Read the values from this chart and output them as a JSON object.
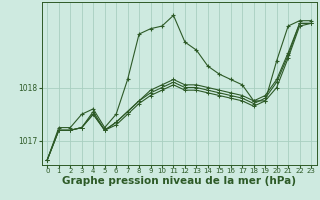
{
  "background_color": "#ceeae0",
  "grid_color": "#a8cfc0",
  "line_color": "#2d5a27",
  "xlabel": "Graphe pression niveau de la mer (hPa)",
  "xlabel_fontsize": 7.5,
  "yticks": [
    1017,
    1018
  ],
  "ylim": [
    1016.55,
    1019.6
  ],
  "xlim": [
    -0.5,
    23.5
  ],
  "xticks": [
    0,
    1,
    2,
    3,
    4,
    5,
    6,
    7,
    8,
    9,
    10,
    11,
    12,
    13,
    14,
    15,
    16,
    17,
    18,
    19,
    20,
    21,
    22,
    23
  ],
  "series": [
    [
      1016.65,
      1017.25,
      1017.25,
      1017.5,
      1017.6,
      1017.25,
      1017.5,
      1018.15,
      1019.0,
      1019.1,
      1019.15,
      1019.35,
      1018.85,
      1018.7,
      1018.4,
      1018.25,
      1018.15,
      1018.05,
      1017.75,
      1017.75,
      1018.5,
      1019.15,
      1019.25,
      1019.25
    ],
    [
      1016.65,
      1017.2,
      1017.2,
      1017.25,
      1017.55,
      1017.2,
      1017.35,
      1017.55,
      1017.75,
      1017.95,
      1018.05,
      1018.15,
      1018.05,
      1018.05,
      1018.0,
      1017.95,
      1017.9,
      1017.85,
      1017.75,
      1017.85,
      1018.15,
      1018.65,
      1019.2,
      1019.2
    ],
    [
      1016.65,
      1017.2,
      1017.2,
      1017.25,
      1017.5,
      1017.2,
      1017.35,
      1017.55,
      1017.75,
      1017.9,
      1018.0,
      1018.1,
      1018.0,
      1018.0,
      1017.95,
      1017.9,
      1017.85,
      1017.8,
      1017.7,
      1017.8,
      1018.1,
      1018.6,
      1019.2,
      1019.2
    ],
    [
      1016.65,
      1017.2,
      1017.2,
      1017.25,
      1017.5,
      1017.2,
      1017.3,
      1017.5,
      1017.7,
      1017.85,
      1017.95,
      1018.05,
      1017.95,
      1017.95,
      1017.9,
      1017.85,
      1017.8,
      1017.75,
      1017.65,
      1017.75,
      1018.0,
      1018.55,
      1019.15,
      1019.2
    ]
  ]
}
